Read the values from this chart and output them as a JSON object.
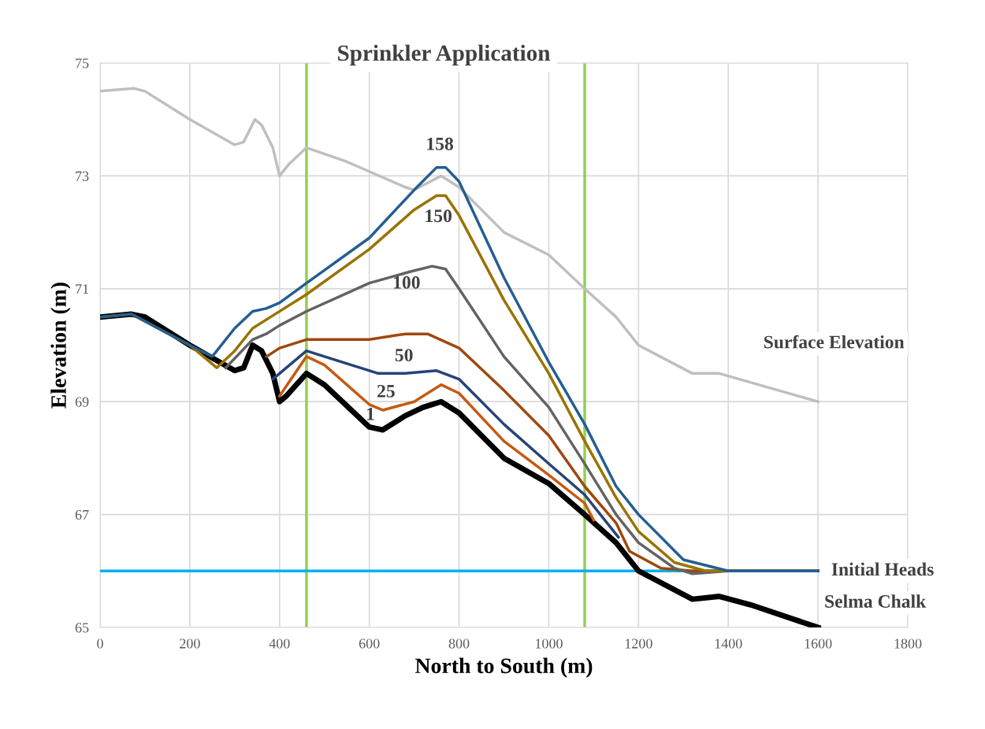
{
  "chart_data": {
    "type": "line",
    "title": "Sprinkler Application",
    "xlabel": "North to South (m)",
    "ylabel": "Elevation (m)",
    "xlim": [
      0,
      1800
    ],
    "xticks": [
      0,
      200,
      400,
      600,
      800,
      1000,
      1200,
      1400,
      1600,
      1800
    ],
    "ylim": [
      65,
      75
    ],
    "yticks": [
      65,
      67,
      69,
      71,
      73,
      75
    ],
    "grid": true,
    "legend": false,
    "marker": "none",
    "line_style": "solid",
    "series": [
      {
        "name": "Surface Elevation",
        "color": "#bfbfbf",
        "x": [
          0,
          75,
          100,
          200,
          300,
          320,
          345,
          360,
          385,
          400,
          420,
          460,
          550,
          680,
          700,
          760,
          800,
          900,
          1000,
          1080,
          1150,
          1200,
          1320,
          1380,
          1600
        ],
        "values": [
          74.5,
          74.55,
          74.5,
          74.0,
          73.55,
          73.6,
          74.0,
          73.9,
          73.5,
          73.0,
          73.2,
          73.5,
          73.25,
          72.8,
          72.75,
          73.0,
          72.8,
          72.0,
          71.6,
          71.0,
          70.5,
          70.0,
          69.5,
          69.5,
          69.0
        ]
      },
      {
        "name": "Initial Heads",
        "color": "#00b0f0",
        "x": [
          0,
          1600
        ],
        "values": [
          66.0,
          66.0
        ]
      },
      {
        "name": "1",
        "color": "#000000",
        "x": [
          0,
          70,
          100,
          200,
          300,
          320,
          340,
          360,
          385,
          400,
          415,
          460,
          500,
          600,
          630,
          680,
          720,
          760,
          800,
          900,
          1000,
          1080,
          1150,
          1200,
          1320,
          1380,
          1450,
          1600
        ],
        "values": [
          70.5,
          70.55,
          70.5,
          70.0,
          69.55,
          69.6,
          70.0,
          69.9,
          69.5,
          69.0,
          69.1,
          69.5,
          69.3,
          68.55,
          68.5,
          68.75,
          68.9,
          69.0,
          68.8,
          68.0,
          67.55,
          67.0,
          66.5,
          66.0,
          65.5,
          65.55,
          65.4,
          65.0
        ]
      },
      {
        "name": "25",
        "color": "#c55a11",
        "x": [
          400,
          460,
          500,
          600,
          630,
          700,
          760,
          800,
          900,
          1000,
          1080,
          1100
        ],
        "values": [
          69.1,
          69.8,
          69.65,
          68.95,
          68.85,
          69.0,
          69.3,
          69.15,
          68.3,
          67.7,
          67.2,
          66.9
        ]
      },
      {
        "name": "50",
        "color": "#264478",
        "x": [
          385,
          400,
          460,
          500,
          620,
          680,
          750,
          800,
          900,
          1000,
          1080,
          1155
        ],
        "values": [
          69.4,
          69.5,
          69.9,
          69.8,
          69.5,
          69.5,
          69.55,
          69.4,
          68.6,
          67.9,
          67.35,
          66.6
        ]
      },
      {
        "color": "#9e480e",
        "x": [
          371,
          400,
          460,
          600,
          680,
          730,
          800,
          900,
          1000,
          1080,
          1150,
          1180,
          1250,
          1320,
          1600
        ],
        "values": [
          69.8,
          69.95,
          70.1,
          70.1,
          70.2,
          70.2,
          69.95,
          69.2,
          68.4,
          67.5,
          66.85,
          66.35,
          66.05,
          66.0,
          66.0
        ]
      },
      {
        "name": "100",
        "color": "#636363",
        "x": [
          280,
          340,
          370,
          400,
          460,
          600,
          690,
          740,
          770,
          800,
          900,
          1000,
          1080,
          1150,
          1200,
          1280,
          1320,
          1400,
          1600
        ],
        "values": [
          69.6,
          70.1,
          70.2,
          70.35,
          70.6,
          71.1,
          71.3,
          71.4,
          71.35,
          71.0,
          69.8,
          68.9,
          67.9,
          67.0,
          66.5,
          66.05,
          65.95,
          66.0,
          66.0
        ]
      },
      {
        "name": "150",
        "color": "#997300",
        "x": [
          0,
          70,
          200,
          260,
          300,
          340,
          380,
          460,
          600,
          700,
          750,
          770,
          800,
          900,
          1000,
          1080,
          1150,
          1200,
          1280,
          1350,
          1600
        ],
        "values": [
          70.5,
          70.55,
          70.0,
          69.6,
          69.9,
          70.3,
          70.5,
          70.9,
          71.7,
          72.4,
          72.65,
          72.65,
          72.3,
          70.8,
          69.5,
          68.3,
          67.3,
          66.7,
          66.15,
          66.0,
          66.0
        ]
      },
      {
        "name": "158",
        "color": "#255e91",
        "x": [
          0,
          70,
          200,
          250,
          300,
          340,
          370,
          400,
          460,
          600,
          700,
          750,
          770,
          800,
          900,
          1000,
          1080,
          1150,
          1200,
          1300,
          1400,
          1600
        ],
        "values": [
          70.5,
          70.55,
          70.0,
          69.8,
          70.3,
          70.6,
          70.65,
          70.75,
          71.1,
          71.9,
          72.75,
          73.15,
          73.15,
          72.9,
          71.2,
          69.7,
          68.6,
          67.5,
          67.0,
          66.2,
          66.0,
          66.0
        ]
      }
    ],
    "ref_lines": [
      {
        "axis": "x",
        "value": 460,
        "label": null,
        "color": "#92d050"
      },
      {
        "axis": "x",
        "value": 1080,
        "label": null,
        "color": "#92d050"
      }
    ],
    "annotations": [
      "Selma Chalk"
    ]
  }
}
